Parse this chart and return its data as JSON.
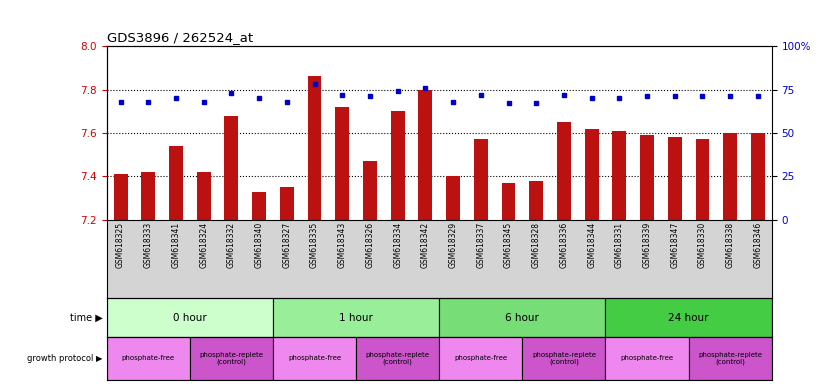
{
  "title": "GDS3896 / 262524_at",
  "samples": [
    "GSM618325",
    "GSM618333",
    "GSM618341",
    "GSM618324",
    "GSM618332",
    "GSM618340",
    "GSM618327",
    "GSM618335",
    "GSM618343",
    "GSM618326",
    "GSM618334",
    "GSM618342",
    "GSM618329",
    "GSM618337",
    "GSM618345",
    "GSM618328",
    "GSM618336",
    "GSM618344",
    "GSM618331",
    "GSM618339",
    "GSM618347",
    "GSM618330",
    "GSM618338",
    "GSM618346"
  ],
  "transformed_count": [
    7.41,
    7.42,
    7.54,
    7.42,
    7.68,
    7.33,
    7.35,
    7.86,
    7.72,
    7.47,
    7.7,
    7.8,
    7.4,
    7.57,
    7.37,
    7.38,
    7.65,
    7.62,
    7.61,
    7.59,
    7.58,
    7.57,
    7.6,
    7.6
  ],
  "percentile_rank": [
    68,
    68,
    70,
    68,
    73,
    70,
    68,
    78,
    72,
    71,
    74,
    76,
    68,
    72,
    67,
    67,
    72,
    70,
    70,
    71,
    71,
    71,
    71,
    71
  ],
  "ylim": [
    7.2,
    8.0
  ],
  "yticks_left": [
    7.2,
    7.4,
    7.6,
    7.8,
    8.0
  ],
  "yticks_right": [
    0,
    25,
    50,
    75,
    100
  ],
  "right_ylabels": [
    "0",
    "25",
    "50",
    "75",
    "100%"
  ],
  "grid_lines": [
    7.4,
    7.6,
    7.8
  ],
  "time_groups": [
    {
      "label": "0 hour",
      "start": 0,
      "end": 6,
      "color": "#ccffcc"
    },
    {
      "label": "1 hour",
      "start": 6,
      "end": 12,
      "color": "#99ee99"
    },
    {
      "label": "6 hour",
      "start": 12,
      "end": 18,
      "color": "#77dd77"
    },
    {
      "label": "24 hour",
      "start": 18,
      "end": 24,
      "color": "#44cc44"
    }
  ],
  "protocol_groups": [
    {
      "label": "phosphate-free",
      "start": 0,
      "end": 3,
      "color": "#ee88ee"
    },
    {
      "label": "phosphate-replete\n(control)",
      "start": 3,
      "end": 6,
      "color": "#cc55cc"
    },
    {
      "label": "phosphate-free",
      "start": 6,
      "end": 9,
      "color": "#ee88ee"
    },
    {
      "label": "phosphate-replete\n(control)",
      "start": 9,
      "end": 12,
      "color": "#cc55cc"
    },
    {
      "label": "phosphate-free",
      "start": 12,
      "end": 15,
      "color": "#ee88ee"
    },
    {
      "label": "phosphate-replete\n(control)",
      "start": 15,
      "end": 18,
      "color": "#cc55cc"
    },
    {
      "label": "phosphate-free",
      "start": 18,
      "end": 21,
      "color": "#ee88ee"
    },
    {
      "label": "phosphate-replete\n(control)",
      "start": 21,
      "end": 24,
      "color": "#cc55cc"
    }
  ],
  "bar_color": "#bb1111",
  "dot_color": "#0000cc",
  "left_tick_color": "#cc0000",
  "right_tick_color": "#0000cc",
  "tick_label_bg": "#d4d4d4",
  "n_samples": 24,
  "bar_width": 0.5
}
